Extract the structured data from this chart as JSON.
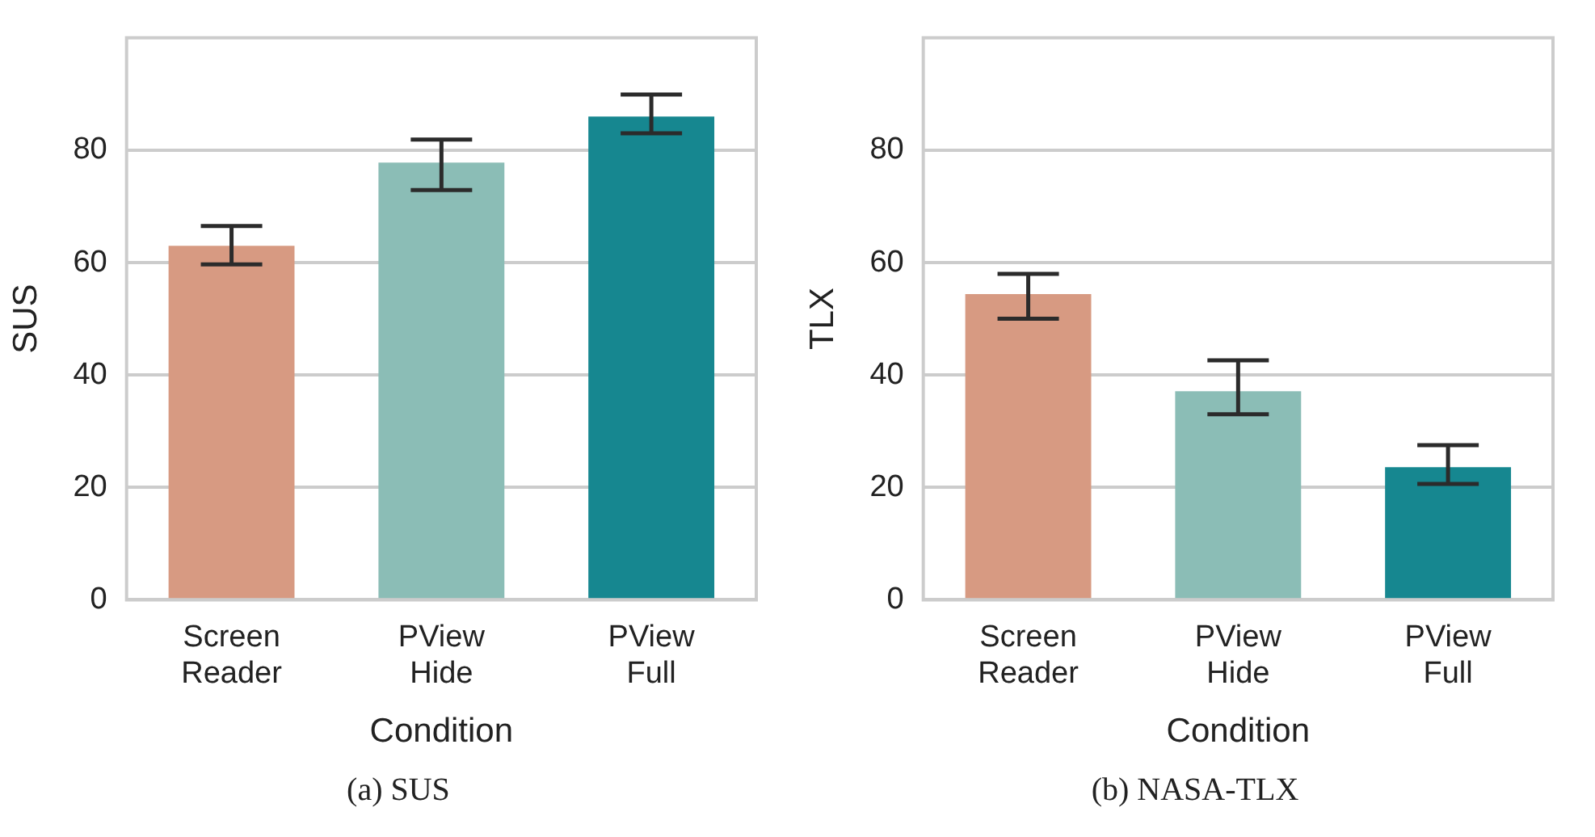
{
  "chart_data": [
    {
      "type": "bar",
      "title": "(a) SUS",
      "xlabel": "Condition",
      "ylabel": "SUS",
      "categories": [
        "Screen Reader",
        "PView Hide",
        "PView Full"
      ],
      "values": [
        63,
        77.8,
        86
      ],
      "colors": [
        "#d79a82",
        "#8bbdb6",
        "#168790"
      ],
      "errors": [
        [
          59.7,
          66.5
        ],
        [
          72.9,
          81.9
        ],
        [
          83,
          89.9
        ]
      ],
      "ylim": [
        0,
        100
      ],
      "yticks": [
        0,
        20,
        40,
        60,
        80
      ],
      "grid": "y",
      "legend": false
    },
    {
      "type": "bar",
      "title": "(b) NASA-TLX",
      "xlabel": "Condition",
      "ylabel": "TLX",
      "categories": [
        "Screen Reader",
        "PView Hide",
        "PView Full"
      ],
      "values": [
        54.4,
        37.1,
        23.6
      ],
      "colors": [
        "#d79a82",
        "#8bbdb6",
        "#168790"
      ],
      "errors": [
        [
          50,
          58
        ],
        [
          33,
          42.6
        ],
        [
          20.6,
          27.5
        ]
      ],
      "ylim": [
        0,
        100
      ],
      "yticks": [
        0,
        20,
        40,
        60,
        80
      ],
      "grid": "y",
      "legend": false
    }
  ]
}
